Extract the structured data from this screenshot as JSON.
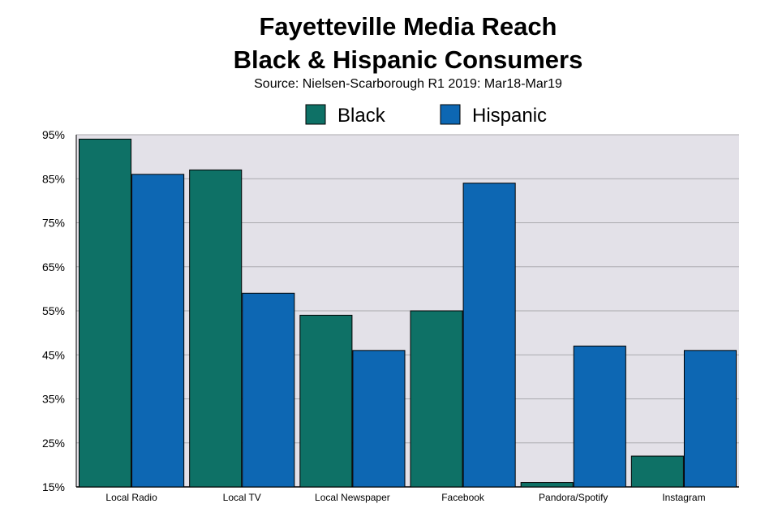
{
  "chart_data": {
    "type": "bar",
    "title_line1": "Fayetteville Media Reach",
    "title_line2": "Black & Hispanic Consumers",
    "subtitle": "Source: Nielsen-Scarborough R1 2019: Mar18-Mar19",
    "categories": [
      "Local Radio",
      "Local TV",
      "Local Newspaper",
      "Facebook",
      "Pandora/Spotify",
      "Instagram"
    ],
    "series": [
      {
        "name": "Black",
        "color": "#0E7166",
        "values": [
          94,
          87,
          54,
          55,
          16,
          22
        ]
      },
      {
        "name": "Hispanic",
        "color": "#0D67B3",
        "values": [
          86,
          59,
          46,
          84,
          47,
          46
        ]
      }
    ],
    "y_ticks": [
      15,
      25,
      35,
      45,
      55,
      65,
      75,
      85,
      95
    ],
    "y_tick_suffix": "%",
    "ylim": [
      15,
      95
    ],
    "grid": true,
    "legend_position": "top-center",
    "plot_background": "#E3E1E8",
    "xlabel": "",
    "ylabel": ""
  }
}
